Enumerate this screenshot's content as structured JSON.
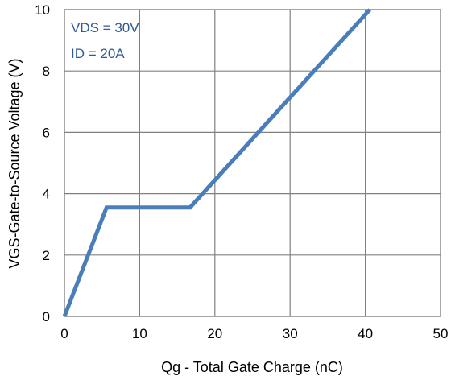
{
  "chart_data": {
    "type": "line",
    "xlabel": "Qg - Total Gate Charge (nC)",
    "ylabel": "VGS-Gate-to-Source Voltage (V)",
    "xlim": [
      0,
      50
    ],
    "ylim": [
      0,
      10
    ],
    "x_ticks": [
      "0",
      "10",
      "20",
      "30",
      "40",
      "50"
    ],
    "y_ticks": [
      "0",
      "2",
      "4",
      "6",
      "8",
      "10"
    ],
    "grid": true,
    "line_color": "#4a7ebb",
    "series": [
      {
        "x": [
          0,
          5.6,
          16.7,
          40.6
        ],
        "y": [
          0,
          3.55,
          3.55,
          10
        ]
      }
    ],
    "annotations": [
      "VDS = 30V",
      "ID = 20A"
    ]
  }
}
